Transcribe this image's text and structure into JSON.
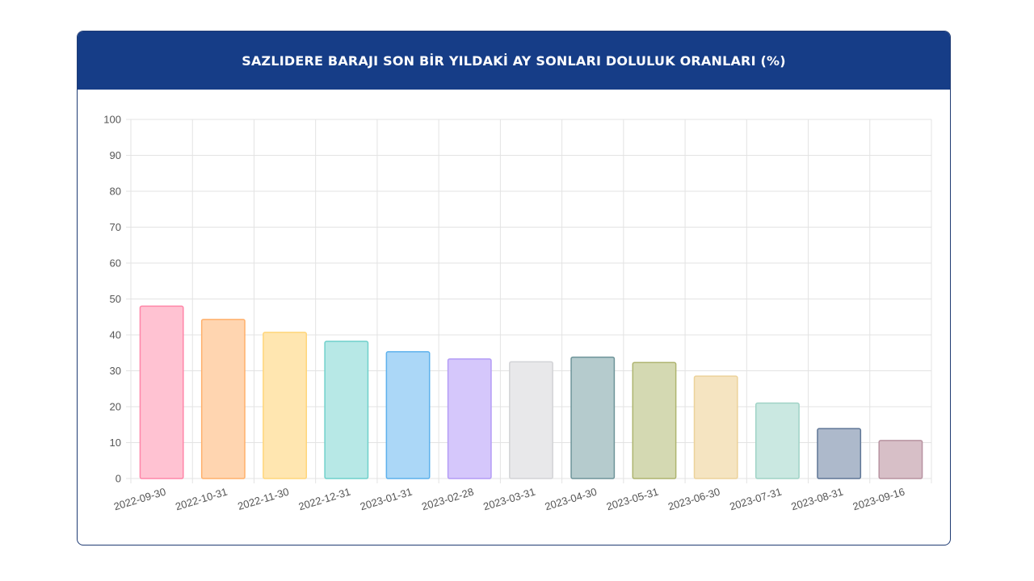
{
  "card": {
    "title": "SAZLIDERE BARAJI SON BİR YILDAKİ AY SONLARI DOLULUK ORANLARI (%)"
  },
  "colors": {
    "header_bg": "#163d87",
    "border": "#1f3b73",
    "grid": "#e3e3e3"
  },
  "chart_data": {
    "type": "bar",
    "title": "SAZLIDERE BARAJI SON BİR YILDAKİ AY SONLARI DOLULUK ORANLARI (%)",
    "xlabel": "",
    "ylabel": "",
    "ylim": [
      0,
      100
    ],
    "yticks": [
      0,
      10,
      20,
      30,
      40,
      50,
      60,
      70,
      80,
      90,
      100
    ],
    "grid": true,
    "legend": "none",
    "categories": [
      "2022-09-30",
      "2022-10-31",
      "2022-11-30",
      "2022-12-31",
      "2023-01-31",
      "2023-02-28",
      "2023-03-31",
      "2023-04-30",
      "2023-05-31",
      "2023-06-30",
      "2023-07-31",
      "2023-08-31",
      "2023-09-16"
    ],
    "values": [
      48,
      44.3,
      40.7,
      38.2,
      35.3,
      33.3,
      32.5,
      33.8,
      32.3,
      28.5,
      21,
      13.9,
      10.6
    ],
    "bar_fills": [
      "#ffc2d2",
      "#ffd5b0",
      "#ffe6b0",
      "#b7e8e6",
      "#abd7f7",
      "#d5c7fb",
      "#e8e8ea",
      "#b5cbcd",
      "#d4d9b2",
      "#f5e4c1",
      "#cae8e1",
      "#adb9cb",
      "#d7bfc7"
    ],
    "bar_strokes": [
      "#ff86a8",
      "#ffb06b",
      "#ffd57a",
      "#6fd0cb",
      "#5db1ec",
      "#b39bf5",
      "#d2d3d6",
      "#6e9499",
      "#aeb46f",
      "#ecd29a",
      "#9fd3c6",
      "#5f7696",
      "#b792a0"
    ]
  }
}
